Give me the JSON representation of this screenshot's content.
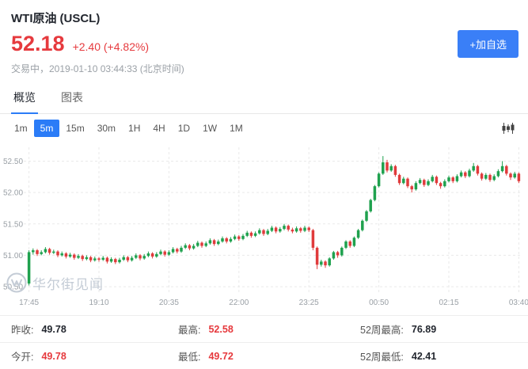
{
  "header": {
    "title": "WTI原油",
    "symbol": "(USCL)",
    "price": "52.18",
    "change": "+2.40 (+4.82%)",
    "status": "交易中，2019-01-10 03:44:33 (北京时间)",
    "add_watchlist_label": "+加自选"
  },
  "tabs": [
    {
      "label": "概览",
      "active": true
    },
    {
      "label": "图表",
      "active": false
    }
  ],
  "intervals": [
    {
      "label": "1m",
      "active": false
    },
    {
      "label": "5m",
      "active": true
    },
    {
      "label": "15m",
      "active": false
    },
    {
      "label": "30m",
      "active": false
    },
    {
      "label": "1H",
      "active": false
    },
    {
      "label": "4H",
      "active": false
    },
    {
      "label": "1D",
      "active": false
    },
    {
      "label": "1W",
      "active": false
    },
    {
      "label": "1M",
      "active": false
    }
  ],
  "watermark": {
    "text": "华尔街见闻"
  },
  "colors": {
    "accent": "#2b7cf7",
    "price_red": "#e63a3e",
    "candle_up": "#1fa14e",
    "candle_down": "#e03b3c"
  },
  "stats": {
    "rows": [
      [
        {
          "label": "昨收:",
          "value": "49.78",
          "color": "dark"
        },
        {
          "label": "最高:",
          "value": "52.58",
          "color": "red"
        },
        {
          "label": "52周最高:",
          "value": "76.89",
          "color": "dark"
        }
      ],
      [
        {
          "label": "今开:",
          "value": "49.78",
          "color": "red"
        },
        {
          "label": "最低:",
          "value": "49.72",
          "color": "red"
        },
        {
          "label": "52周最低:",
          "value": "42.41",
          "color": "dark"
        }
      ]
    ]
  },
  "chart_data": {
    "type": "candlestick",
    "interval": "5m",
    "x_ticks": [
      "17:45",
      "19:10",
      "20:35",
      "22:00",
      "23:25",
      "00:50",
      "02:15",
      "03:40"
    ],
    "x_tick_indices": [
      0,
      17,
      34,
      51,
      68,
      85,
      102,
      119
    ],
    "y_ticks": [
      "52.50",
      "52.00",
      "51.50",
      "51.00",
      "50.50"
    ],
    "ylim": [
      50.4,
      52.72
    ],
    "last_price": 52.18,
    "candles": [
      [
        50.55,
        51.08,
        50.52,
        51.05
      ],
      [
        51.05,
        51.11,
        51.01,
        51.08
      ],
      [
        51.08,
        51.1,
        50.99,
        51.02
      ],
      [
        51.02,
        51.08,
        51.0,
        51.05
      ],
      [
        51.05,
        51.13,
        51.03,
        51.1
      ],
      [
        51.1,
        51.12,
        51.01,
        51.04
      ],
      [
        51.04,
        51.09,
        51.02,
        51.06
      ],
      [
        51.06,
        51.08,
        50.97,
        51.0
      ],
      [
        51.0,
        51.06,
        50.98,
        51.03
      ],
      [
        51.03,
        51.05,
        50.95,
        50.98
      ],
      [
        50.98,
        51.04,
        50.96,
        51.01
      ],
      [
        51.01,
        51.03,
        50.93,
        50.96
      ],
      [
        50.96,
        51.02,
        50.94,
        50.99
      ],
      [
        50.99,
        51.01,
        50.91,
        50.94
      ],
      [
        50.94,
        51.0,
        50.92,
        50.97
      ],
      [
        50.97,
        50.99,
        50.89,
        50.92
      ],
      [
        50.92,
        50.98,
        50.9,
        50.95
      ],
      [
        50.95,
        50.97,
        50.9,
        50.93
      ],
      [
        50.93,
        50.99,
        50.91,
        50.96
      ],
      [
        50.96,
        50.98,
        50.87,
        50.9
      ],
      [
        50.9,
        50.97,
        50.88,
        50.94
      ],
      [
        50.94,
        50.96,
        50.86,
        50.89
      ],
      [
        50.89,
        50.96,
        50.87,
        50.93
      ],
      [
        50.93,
        51.0,
        50.91,
        50.97
      ],
      [
        50.97,
        50.99,
        50.89,
        50.92
      ],
      [
        50.92,
        50.99,
        50.9,
        50.96
      ],
      [
        50.96,
        51.03,
        50.94,
        51.0
      ],
      [
        51.0,
        51.02,
        50.92,
        50.95
      ],
      [
        50.95,
        51.02,
        50.93,
        50.99
      ],
      [
        50.99,
        51.06,
        50.97,
        51.03
      ],
      [
        51.03,
        51.05,
        50.95,
        50.98
      ],
      [
        50.98,
        51.05,
        50.96,
        51.02
      ],
      [
        51.02,
        51.09,
        51.0,
        51.06
      ],
      [
        51.06,
        51.08,
        50.98,
        51.01
      ],
      [
        51.01,
        51.08,
        50.99,
        51.05
      ],
      [
        51.05,
        51.13,
        51.03,
        51.1
      ],
      [
        51.1,
        51.12,
        51.03,
        51.06
      ],
      [
        51.06,
        51.15,
        51.04,
        51.12
      ],
      [
        51.12,
        51.19,
        51.1,
        51.16
      ],
      [
        51.16,
        51.18,
        51.08,
        51.11
      ],
      [
        51.11,
        51.18,
        51.09,
        51.15
      ],
      [
        51.15,
        51.23,
        51.13,
        51.2
      ],
      [
        51.2,
        51.22,
        51.12,
        51.15
      ],
      [
        51.15,
        51.22,
        51.13,
        51.19
      ],
      [
        51.19,
        51.27,
        51.17,
        51.24
      ],
      [
        51.24,
        51.26,
        51.15,
        51.18
      ],
      [
        51.18,
        51.25,
        51.16,
        51.22
      ],
      [
        51.22,
        51.3,
        51.2,
        51.27
      ],
      [
        51.27,
        51.29,
        51.19,
        51.22
      ],
      [
        51.22,
        51.29,
        51.2,
        51.26
      ],
      [
        51.26,
        51.33,
        51.24,
        51.3
      ],
      [
        51.3,
        51.32,
        51.23,
        51.26
      ],
      [
        51.26,
        51.34,
        51.24,
        51.31
      ],
      [
        51.31,
        51.39,
        51.29,
        51.36
      ],
      [
        51.36,
        51.38,
        51.28,
        51.31
      ],
      [
        51.31,
        51.38,
        51.29,
        51.35
      ],
      [
        51.35,
        51.43,
        51.33,
        51.4
      ],
      [
        51.4,
        51.42,
        51.31,
        51.34
      ],
      [
        51.34,
        51.42,
        51.32,
        51.39
      ],
      [
        51.39,
        51.47,
        51.37,
        51.44
      ],
      [
        51.44,
        51.46,
        51.35,
        51.38
      ],
      [
        51.38,
        51.45,
        51.36,
        51.42
      ],
      [
        51.42,
        51.5,
        51.4,
        51.47
      ],
      [
        51.47,
        51.49,
        51.38,
        51.41
      ],
      [
        51.41,
        51.44,
        51.35,
        51.38
      ],
      [
        51.38,
        51.46,
        51.36,
        51.43
      ],
      [
        51.43,
        51.45,
        51.36,
        51.39
      ],
      [
        51.39,
        51.47,
        51.37,
        51.44
      ],
      [
        51.44,
        51.46,
        51.37,
        51.4
      ],
      [
        51.4,
        51.42,
        51.08,
        51.12
      ],
      [
        51.12,
        51.14,
        50.78,
        50.85
      ],
      [
        50.85,
        50.93,
        50.82,
        50.9
      ],
      [
        50.9,
        50.92,
        50.8,
        50.84
      ],
      [
        50.84,
        50.97,
        50.82,
        50.95
      ],
      [
        50.95,
        51.07,
        50.93,
        51.05
      ],
      [
        51.05,
        51.07,
        50.96,
        51.0
      ],
      [
        51.0,
        51.14,
        50.98,
        51.12
      ],
      [
        51.12,
        51.24,
        51.1,
        51.22
      ],
      [
        51.22,
        51.24,
        51.12,
        51.15
      ],
      [
        51.15,
        51.3,
        51.13,
        51.28
      ],
      [
        51.28,
        51.42,
        51.26,
        51.4
      ],
      [
        51.4,
        51.57,
        51.38,
        51.55
      ],
      [
        51.55,
        51.72,
        51.53,
        51.7
      ],
      [
        51.7,
        51.9,
        51.68,
        51.88
      ],
      [
        51.88,
        52.12,
        51.86,
        52.1
      ],
      [
        52.1,
        52.32,
        52.08,
        52.3
      ],
      [
        52.3,
        52.58,
        52.28,
        52.48
      ],
      [
        52.48,
        52.52,
        52.32,
        52.35
      ],
      [
        52.35,
        52.45,
        52.33,
        52.42
      ],
      [
        52.42,
        52.44,
        52.25,
        52.28
      ],
      [
        52.28,
        52.3,
        52.12,
        52.15
      ],
      [
        52.15,
        52.25,
        52.13,
        52.22
      ],
      [
        52.22,
        52.24,
        52.07,
        52.1
      ],
      [
        52.1,
        52.12,
        52.0,
        52.05
      ],
      [
        52.05,
        52.18,
        52.03,
        52.15
      ],
      [
        52.15,
        52.23,
        52.13,
        52.2
      ],
      [
        52.2,
        52.22,
        52.09,
        52.12
      ],
      [
        52.12,
        52.21,
        52.1,
        52.18
      ],
      [
        52.18,
        52.28,
        52.16,
        52.25
      ],
      [
        52.25,
        52.27,
        52.12,
        52.15
      ],
      [
        52.15,
        52.17,
        52.06,
        52.1
      ],
      [
        52.1,
        52.21,
        52.08,
        52.18
      ],
      [
        52.18,
        52.27,
        52.16,
        52.24
      ],
      [
        52.24,
        52.26,
        52.15,
        52.18
      ],
      [
        52.18,
        52.29,
        52.16,
        52.26
      ],
      [
        52.26,
        52.35,
        52.24,
        52.32
      ],
      [
        52.32,
        52.34,
        52.23,
        52.26
      ],
      [
        52.26,
        52.38,
        52.24,
        52.35
      ],
      [
        52.35,
        52.47,
        52.33,
        52.42
      ],
      [
        52.42,
        52.44,
        52.27,
        52.3
      ],
      [
        52.3,
        52.32,
        52.19,
        52.22
      ],
      [
        52.22,
        52.31,
        52.2,
        52.28
      ],
      [
        52.28,
        52.3,
        52.17,
        52.2
      ],
      [
        52.2,
        52.29,
        52.18,
        52.26
      ],
      [
        52.26,
        52.37,
        52.24,
        52.34
      ],
      [
        52.34,
        52.5,
        52.32,
        52.42
      ],
      [
        52.42,
        52.44,
        52.27,
        52.3
      ],
      [
        52.3,
        52.32,
        52.2,
        52.24
      ],
      [
        52.24,
        52.33,
        52.22,
        52.3
      ],
      [
        52.3,
        52.32,
        52.15,
        52.18
      ]
    ]
  }
}
